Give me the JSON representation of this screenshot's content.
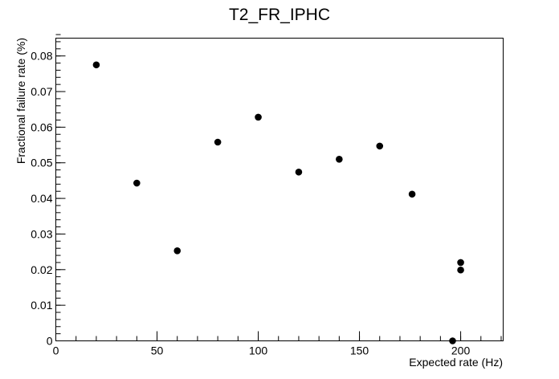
{
  "chart_data": {
    "type": "scatter",
    "title": "T2_FR_IPHC",
    "xlabel": "Expected rate (Hz)",
    "ylabel": "Fractional failure rate (%)",
    "xlim": [
      0,
      221
    ],
    "ylim": [
      0,
      0.085
    ],
    "x_ticks": [
      0,
      50,
      100,
      150,
      200
    ],
    "x_tick_labels": [
      "0",
      "50",
      "100",
      "150",
      "200"
    ],
    "y_ticks": [
      0,
      0.01,
      0.02,
      0.03,
      0.04,
      0.05,
      0.06,
      0.07,
      0.08
    ],
    "y_tick_labels": [
      "0",
      "0.01",
      "0.02",
      "0.03",
      "0.04",
      "0.05",
      "0.06",
      "0.07",
      "0.08"
    ],
    "grid": false,
    "legend": "none",
    "marker_color": "#000000",
    "series": [
      {
        "points": [
          {
            "x": 20,
            "y": 0.0775
          },
          {
            "x": 40,
            "y": 0.0443
          },
          {
            "x": 60,
            "y": 0.0253
          },
          {
            "x": 80,
            "y": 0.0558
          },
          {
            "x": 100,
            "y": 0.0628
          },
          {
            "x": 120,
            "y": 0.0474
          },
          {
            "x": 140,
            "y": 0.051
          },
          {
            "x": 160,
            "y": 0.0547
          },
          {
            "x": 176,
            "y": 0.0412
          },
          {
            "x": 196,
            "y": 0.0
          },
          {
            "x": 200,
            "y": 0.022
          },
          {
            "x": 200,
            "y": 0.0199
          }
        ]
      }
    ]
  }
}
